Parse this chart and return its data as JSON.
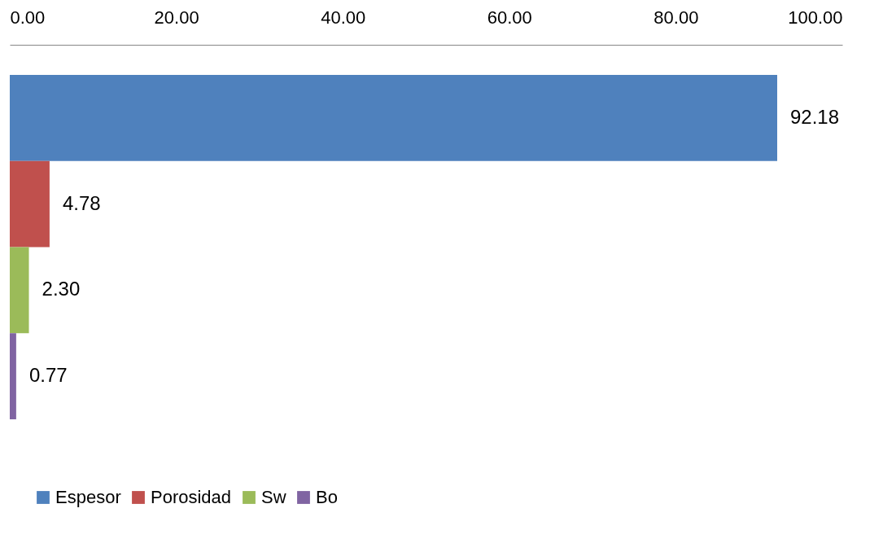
{
  "chart_data": {
    "type": "bar",
    "orientation": "horizontal",
    "categories": [
      null
    ],
    "series": [
      {
        "name": "Espesor",
        "color": "#4f81bd",
        "values": [
          92.18
        ],
        "value_labels": [
          "92.18"
        ]
      },
      {
        "name": "Porosidad",
        "color": "#c0504d",
        "values": [
          4.78
        ],
        "value_labels": [
          "4.78"
        ]
      },
      {
        "name": "Sw",
        "color": "#9bbb59",
        "values": [
          2.3
        ],
        "value_labels": [
          "2.30"
        ]
      },
      {
        "name": "Bo",
        "color": "#8064a2",
        "values": [
          0.77
        ],
        "value_labels": [
          "0.77"
        ]
      }
    ],
    "xlim": [
      0,
      100
    ],
    "xticks": [
      {
        "value": 0,
        "label": "0.00"
      },
      {
        "value": 20,
        "label": "20.00"
      },
      {
        "value": 40,
        "label": "40.00"
      },
      {
        "value": 60,
        "label": "60.00"
      },
      {
        "value": 80,
        "label": "80.00"
      },
      {
        "value": 100,
        "label": "100.00"
      }
    ],
    "legend": "bottom",
    "grid": false
  }
}
